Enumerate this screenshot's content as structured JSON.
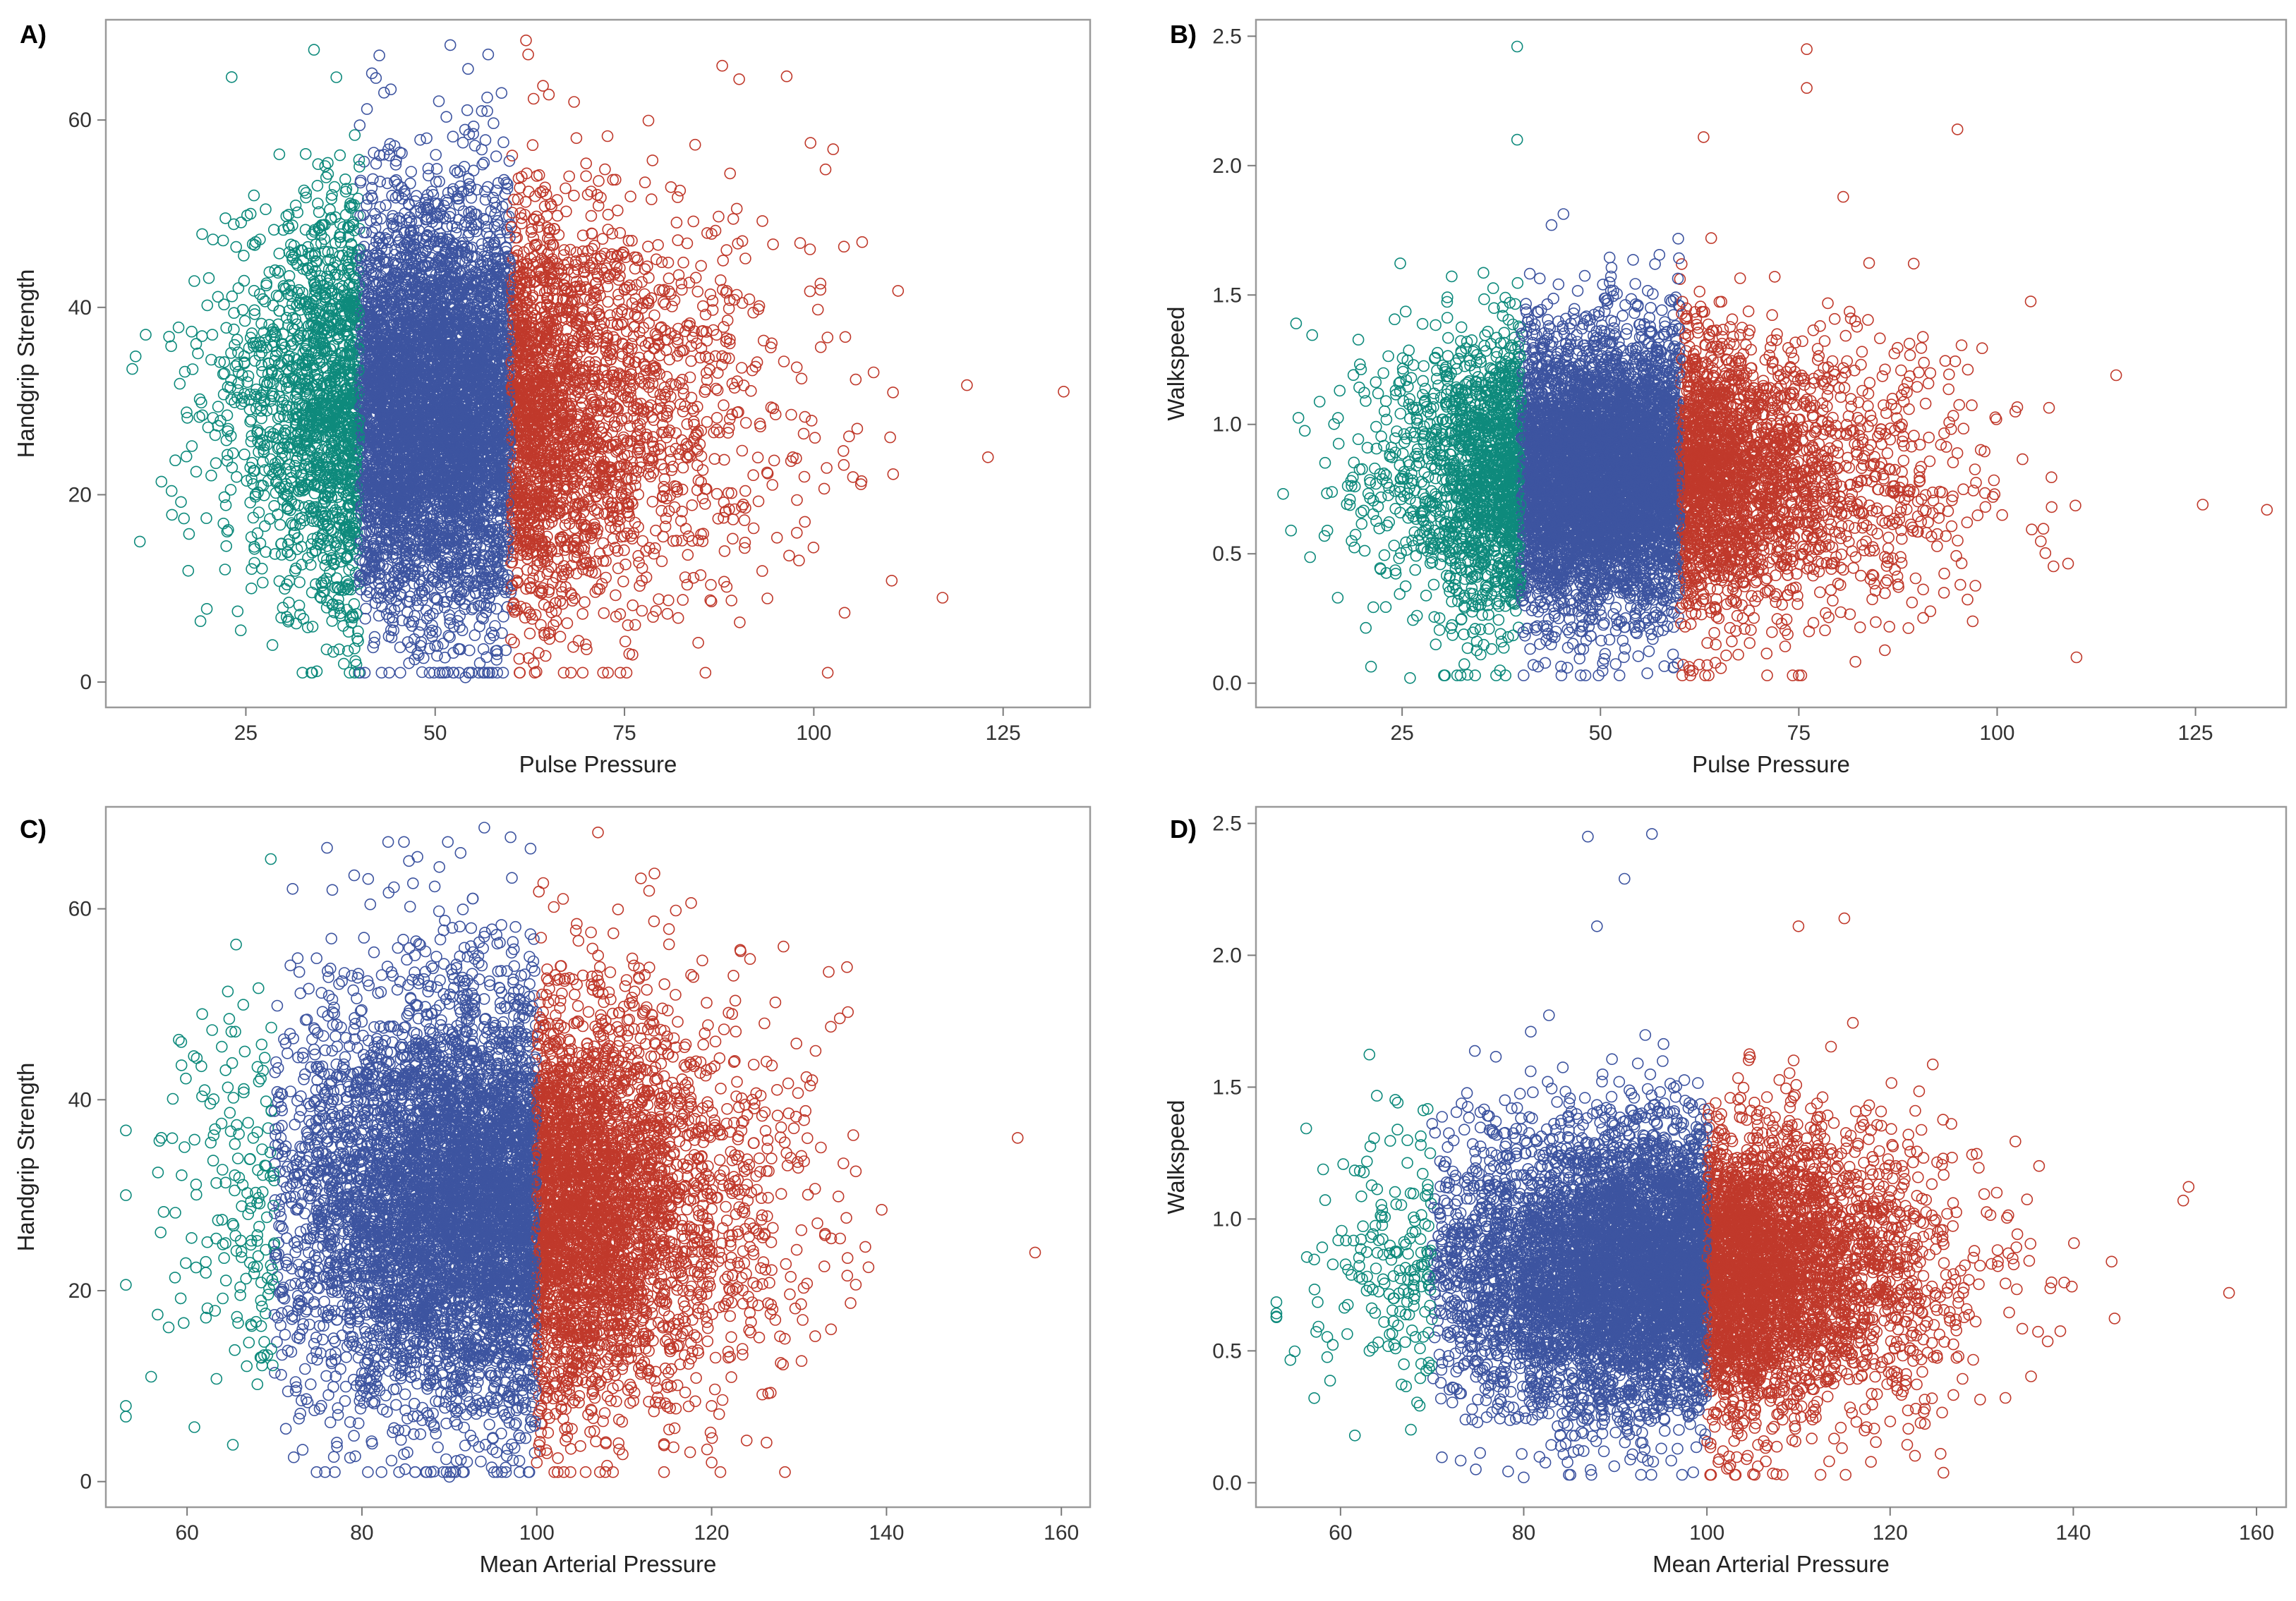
{
  "figure": {
    "colors": {
      "low": "#0e8a7c",
      "mid": "#3d54a0",
      "high": "#c0392b"
    },
    "panels": [
      {
        "id": "A",
        "label": "A)",
        "chart_type": "scatter",
        "seed": 11,
        "n": 9000,
        "x_var": "pp",
        "y_var": "hg"
      },
      {
        "id": "B",
        "label": "B)",
        "chart_type": "scatter",
        "seed": 23,
        "n": 9000,
        "x_var": "pp",
        "y_var": "ws"
      },
      {
        "id": "C",
        "label": "C)",
        "chart_type": "scatter",
        "seed": 37,
        "n": 9000,
        "x_var": "map",
        "y_var": "hg"
      },
      {
        "id": "D",
        "label": "D)",
        "chart_type": "scatter",
        "seed": 51,
        "n": 9000,
        "x_var": "map",
        "y_var": "ws"
      }
    ]
  },
  "chart_data": [
    {
      "type": "scatter",
      "panel": "A",
      "xlabel": "Pulse Pressure",
      "ylabel": "Handgrip Strength",
      "xlim": [
        8,
        135
      ],
      "ylim": [
        -1.5,
        69.5
      ],
      "xticks": [
        25,
        50,
        75,
        100,
        125
      ],
      "yticks": [
        0,
        20,
        40,
        60
      ],
      "groups": [
        {
          "name": "low",
          "color": "#0e8a7c",
          "x_range": [
            10,
            40
          ]
        },
        {
          "name": "mid",
          "color": "#3d54a0",
          "x_range": [
            40,
            60
          ]
        },
        {
          "name": "high",
          "color": "#c0392b",
          "x_range": [
            60,
            134
          ]
        }
      ],
      "annotated_points": [
        {
          "x": 11,
          "y": 15
        },
        {
          "x": 19,
          "y": 6.5
        },
        {
          "x": 34,
          "y": 67.5
        },
        {
          "x": 52,
          "y": 68
        },
        {
          "x": 54,
          "y": 0.5
        },
        {
          "x": 57,
          "y": 67
        },
        {
          "x": 62,
          "y": 68.5
        },
        {
          "x": 63,
          "y": 2
        },
        {
          "x": 70,
          "y": 3.5
        },
        {
          "x": 133,
          "y": 31
        },
        {
          "x": 123,
          "y": 24
        },
        {
          "x": 117,
          "y": 9
        }
      ]
    },
    {
      "type": "scatter",
      "panel": "B",
      "xlabel": "Pulse Pressure",
      "ylabel": "Walkspeed",
      "xlim": [
        8,
        135
      ],
      "ylim": [
        -0.05,
        2.52
      ],
      "xticks": [
        25,
        50,
        75,
        100,
        125
      ],
      "yticks": [
        0.0,
        0.5,
        1.0,
        1.5,
        2.0,
        2.5
      ],
      "groups": [
        {
          "name": "low",
          "color": "#0e8a7c",
          "x_range": [
            10,
            40
          ]
        },
        {
          "name": "mid",
          "color": "#3d54a0",
          "x_range": [
            40,
            60
          ]
        },
        {
          "name": "high",
          "color": "#c0392b",
          "x_range": [
            60,
            134
          ]
        }
      ],
      "annotated_points": [
        {
          "x": 39.5,
          "y": 2.46
        },
        {
          "x": 39.5,
          "y": 2.1
        },
        {
          "x": 76,
          "y": 2.45
        },
        {
          "x": 76,
          "y": 2.3
        },
        {
          "x": 95,
          "y": 2.14
        },
        {
          "x": 63,
          "y": 2.11
        },
        {
          "x": 11,
          "y": 0.59
        },
        {
          "x": 26,
          "y": 0.02
        },
        {
          "x": 134,
          "y": 0.67
        },
        {
          "x": 115,
          "y": 1.19
        },
        {
          "x": 110,
          "y": 0.1
        }
      ]
    },
    {
      "type": "scatter",
      "panel": "C",
      "xlabel": "Mean Arterial Pressure",
      "ylabel": "Handgrip Strength",
      "xlim": [
        52,
        162
      ],
      "ylim": [
        -1.5,
        69.5
      ],
      "xticks": [
        60,
        80,
        100,
        120,
        140,
        160
      ],
      "yticks": [
        0,
        20,
        40,
        60
      ],
      "groups": [
        {
          "name": "low",
          "color": "#0e8a7c",
          "x_range": [
            53,
            70
          ]
        },
        {
          "name": "mid",
          "color": "#3d54a0",
          "x_range": [
            70,
            100
          ]
        },
        {
          "name": "high",
          "color": "#c0392b",
          "x_range": [
            100,
            158
          ]
        }
      ],
      "annotated_points": [
        {
          "x": 94,
          "y": 68.5
        },
        {
          "x": 97,
          "y": 67.5
        },
        {
          "x": 83,
          "y": 67
        },
        {
          "x": 107,
          "y": 68
        },
        {
          "x": 90,
          "y": 0.5
        },
        {
          "x": 120,
          "y": 2
        },
        {
          "x": 100,
          "y": 2
        },
        {
          "x": 53,
          "y": 30
        },
        {
          "x": 157,
          "y": 24
        },
        {
          "x": 155,
          "y": 36
        }
      ]
    },
    {
      "type": "scatter",
      "panel": "D",
      "xlabel": "Mean Arterial Pressure",
      "ylabel": "Walkspeed",
      "xlim": [
        52,
        162
      ],
      "ylim": [
        -0.05,
        2.52
      ],
      "xticks": [
        60,
        80,
        100,
        120,
        140,
        160
      ],
      "yticks": [
        0.0,
        0.5,
        1.0,
        1.5,
        2.0,
        2.5
      ],
      "groups": [
        {
          "name": "low",
          "color": "#0e8a7c",
          "x_range": [
            53,
            70
          ]
        },
        {
          "name": "mid",
          "color": "#3d54a0",
          "x_range": [
            70,
            100
          ]
        },
        {
          "name": "high",
          "color": "#c0392b",
          "x_range": [
            100,
            158
          ]
        }
      ],
      "annotated_points": [
        {
          "x": 87,
          "y": 2.45
        },
        {
          "x": 94,
          "y": 2.46
        },
        {
          "x": 91,
          "y": 2.29
        },
        {
          "x": 88,
          "y": 2.11
        },
        {
          "x": 115,
          "y": 2.14
        },
        {
          "x": 110,
          "y": 2.11
        },
        {
          "x": 80,
          "y": 0.02
        },
        {
          "x": 53,
          "y": 0.63
        },
        {
          "x": 157,
          "y": 0.72
        },
        {
          "x": 152,
          "y": 1.07
        }
      ]
    }
  ]
}
